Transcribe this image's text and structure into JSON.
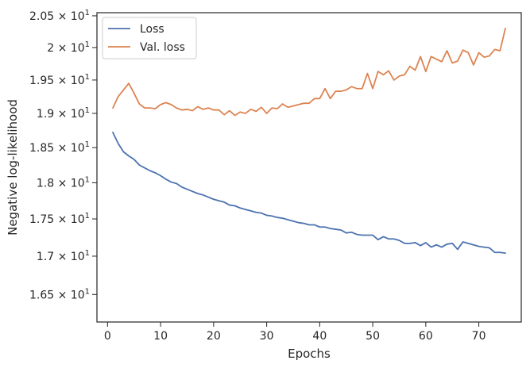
{
  "chart_data": {
    "type": "line",
    "xlabel": "Epochs",
    "ylabel": "Negative log-likelihood",
    "xlim": [
      -2,
      78
    ],
    "ylim": [
      16.15,
      20.55
    ],
    "yscale": "log",
    "x_ticks": [
      0,
      10,
      20,
      30,
      40,
      50,
      60,
      70
    ],
    "y_ticks": [
      {
        "value": 16.5,
        "mantissa": "1.65"
      },
      {
        "value": 17.0,
        "mantissa": "1.7"
      },
      {
        "value": 17.5,
        "mantissa": "1.75"
      },
      {
        "value": 18.0,
        "mantissa": "1.8"
      },
      {
        "value": 18.5,
        "mantissa": "1.85"
      },
      {
        "value": 19.0,
        "mantissa": "1.9"
      },
      {
        "value": 19.5,
        "mantissa": "1.95"
      },
      {
        "value": 20.0,
        "mantissa": "2"
      },
      {
        "value": 20.5,
        "mantissa": "2.05"
      }
    ],
    "y_tick_suffix": "× 10",
    "y_tick_exponent": "1",
    "grid": false,
    "legend_position": "upper-left",
    "x": [
      1,
      2,
      3,
      4,
      5,
      6,
      7,
      8,
      9,
      10,
      11,
      12,
      13,
      14,
      15,
      16,
      17,
      18,
      19,
      20,
      21,
      22,
      23,
      24,
      25,
      26,
      27,
      28,
      29,
      30,
      31,
      32,
      33,
      34,
      35,
      36,
      37,
      38,
      39,
      40,
      41,
      42,
      43,
      44,
      45,
      46,
      47,
      48,
      49,
      50,
      51,
      52,
      53,
      54,
      55,
      56,
      57,
      58,
      59,
      60,
      61,
      62,
      63,
      64,
      65,
      66,
      67,
      68,
      69,
      70,
      71,
      72,
      73,
      74,
      75
    ],
    "series": [
      {
        "name": "Loss",
        "color": "#4c72b0",
        "values": [
          18.72,
          18.56,
          18.44,
          18.38,
          18.33,
          18.25,
          18.21,
          18.17,
          18.14,
          18.1,
          18.05,
          18.01,
          17.99,
          17.94,
          17.91,
          17.88,
          17.85,
          17.83,
          17.8,
          17.77,
          17.75,
          17.73,
          17.69,
          17.68,
          17.65,
          17.63,
          17.61,
          17.59,
          17.58,
          17.55,
          17.54,
          17.52,
          17.51,
          17.49,
          17.47,
          17.45,
          17.44,
          17.42,
          17.42,
          17.39,
          17.39,
          17.37,
          17.36,
          17.35,
          17.31,
          17.32,
          17.29,
          17.28,
          17.28,
          17.28,
          17.22,
          17.26,
          17.23,
          17.23,
          17.21,
          17.17,
          17.17,
          17.18,
          17.14,
          17.18,
          17.12,
          17.15,
          17.12,
          17.16,
          17.17,
          17.09,
          17.19,
          17.17,
          17.15,
          17.13,
          17.12,
          17.11,
          17.05,
          17.05,
          17.04
        ]
      },
      {
        "name": "Val. loss",
        "color": "#dd8452",
        "values": [
          19.08,
          19.25,
          19.35,
          19.45,
          19.3,
          19.14,
          19.08,
          19.08,
          19.07,
          19.13,
          19.16,
          19.13,
          19.08,
          19.05,
          19.06,
          19.04,
          19.1,
          19.06,
          19.08,
          19.05,
          19.05,
          18.98,
          19.04,
          18.97,
          19.02,
          19.0,
          19.06,
          19.03,
          19.09,
          19.0,
          19.08,
          19.07,
          19.14,
          19.09,
          19.11,
          19.13,
          19.15,
          19.15,
          19.22,
          19.22,
          19.37,
          19.22,
          19.33,
          19.33,
          19.35,
          19.4,
          19.37,
          19.37,
          19.6,
          19.37,
          19.63,
          19.58,
          19.64,
          19.5,
          19.56,
          19.58,
          19.71,
          19.65,
          19.86,
          19.63,
          19.86,
          19.82,
          19.78,
          19.95,
          19.76,
          19.79,
          19.96,
          19.92,
          19.73,
          19.92,
          19.85,
          19.87,
          19.97,
          19.95,
          20.3
        ]
      }
    ]
  }
}
